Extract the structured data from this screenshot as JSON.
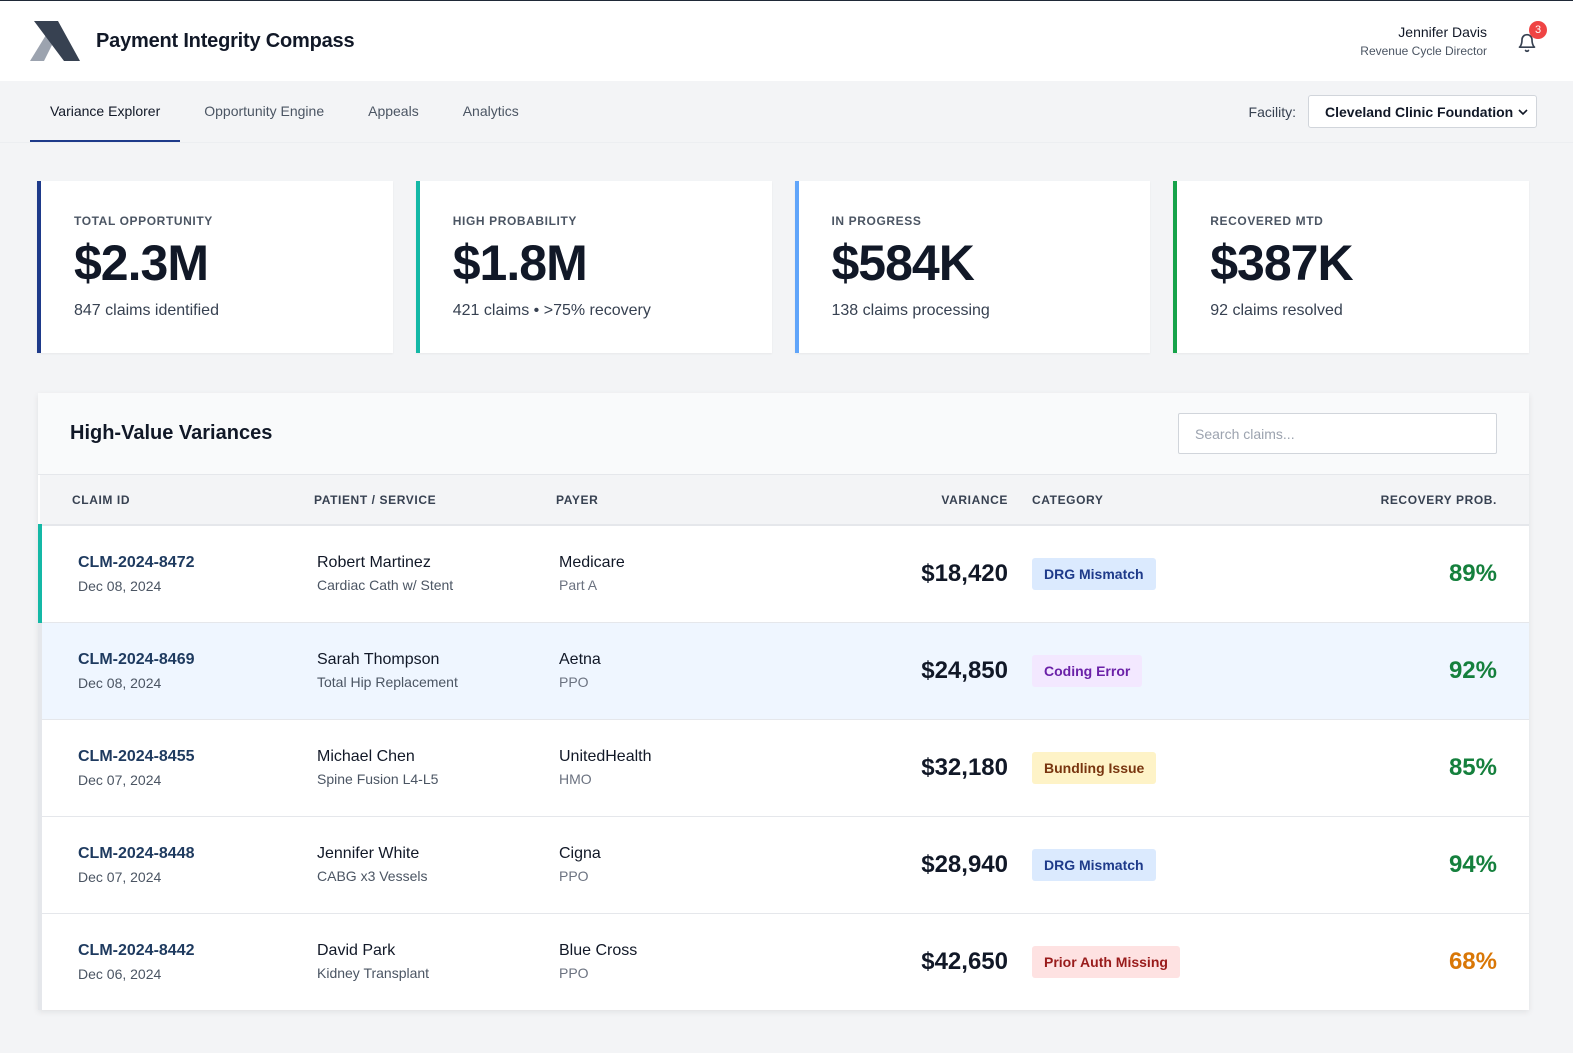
{
  "app": {
    "title": "Payment Integrity Compass",
    "logo_icon": "chevron-logo-icon"
  },
  "user": {
    "name": "Jennifer Davis",
    "role": "Revenue Cycle Director",
    "notification_count": "3"
  },
  "nav": {
    "tabs": [
      {
        "label": "Variance Explorer",
        "active": true
      },
      {
        "label": "Opportunity Engine",
        "active": false
      },
      {
        "label": "Appeals",
        "active": false
      },
      {
        "label": "Analytics",
        "active": false
      }
    ],
    "facility_label": "Facility:",
    "facility_value": "Cleveland Clinic Foundation"
  },
  "kpis": [
    {
      "label": "TOTAL OPPORTUNITY",
      "value": "$2.3M",
      "sub": "847 claims identified",
      "color": "#1e3a8a"
    },
    {
      "label": "HIGH PROBABILITY",
      "value": "$1.8M",
      "sub": "421 claims • >75% recovery",
      "color": "#14b8a6"
    },
    {
      "label": "IN PROGRESS",
      "value": "$584K",
      "sub": "138 claims processing",
      "color": "#60a5fa"
    },
    {
      "label": "RECOVERED MTD",
      "value": "$387K",
      "sub": "92 claims resolved",
      "color": "#16a34a"
    }
  ],
  "table": {
    "title": "High-Value Variances",
    "search_placeholder": "Search claims...",
    "columns": {
      "claim_id": "CLAIM ID",
      "patient": "PATIENT / SERVICE",
      "payer": "PAYER",
      "variance": "VARIANCE",
      "category": "CATEGORY",
      "recovery": "RECOVERY PROB."
    },
    "rows": [
      {
        "id": "CLM-2024-8472",
        "date": "Dec 08, 2024",
        "patient": "Robert Martinez",
        "service": "Cardiac Cath w/ Stent",
        "payer": "Medicare",
        "plan": "Part A",
        "variance": "$18,420",
        "category": "DRG Mismatch",
        "recovery": "89%"
      },
      {
        "id": "CLM-2024-8469",
        "date": "Dec 08, 2024",
        "patient": "Sarah Thompson",
        "service": "Total Hip Replacement",
        "payer": "Aetna",
        "plan": "PPO",
        "variance": "$24,850",
        "category": "Coding Error",
        "recovery": "92%"
      },
      {
        "id": "CLM-2024-8455",
        "date": "Dec 07, 2024",
        "patient": "Michael Chen",
        "service": "Spine Fusion L4-L5",
        "payer": "UnitedHealth",
        "plan": "HMO",
        "variance": "$32,180",
        "category": "Bundling Issue",
        "recovery": "85%"
      },
      {
        "id": "CLM-2024-8448",
        "date": "Dec 07, 2024",
        "patient": "Jennifer White",
        "service": "CABG x3 Vessels",
        "payer": "Cigna",
        "plan": "PPO",
        "variance": "$28,940",
        "category": "DRG Mismatch",
        "recovery": "94%"
      },
      {
        "id": "CLM-2024-8442",
        "date": "Dec 06, 2024",
        "patient": "David Park",
        "service": "Kidney Transplant",
        "payer": "Blue Cross",
        "plan": "PPO",
        "variance": "$42,650",
        "category": "Prior Auth Missing",
        "recovery": "68%"
      }
    ]
  },
  "colors": {
    "categories": {
      "DRG Mismatch": {
        "bg": "#dbeafe",
        "fg": "#1e3a8a"
      },
      "Coding Error": {
        "bg": "#f3e8ff",
        "fg": "#6b21a8"
      },
      "Bundling Issue": {
        "bg": "#fef3c7",
        "fg": "#78350f"
      },
      "Prior Auth Missing": {
        "bg": "#fee2e2",
        "fg": "#991b1b"
      }
    },
    "recovery_high": "#15803d",
    "recovery_medium": "#d97706"
  }
}
